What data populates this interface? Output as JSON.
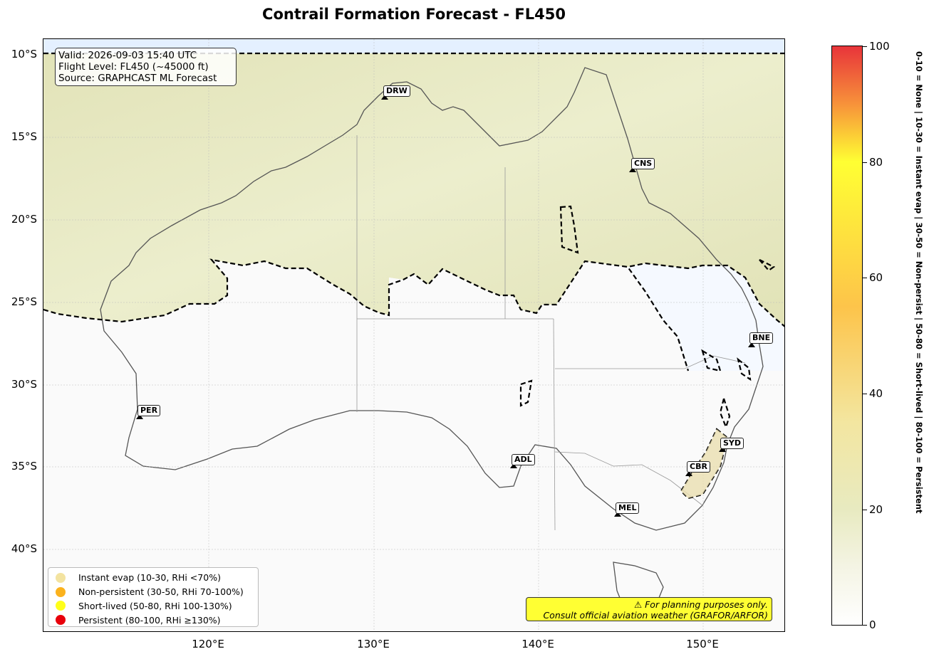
{
  "title": "Contrail Formation Forecast - FL450",
  "info_box": {
    "line1": "Valid: 2026-09-03 15:40 UTC",
    "line2": "Flight Level: FL450 (~45000 ft)",
    "line3": "Source: GRAPHCAST ML Forecast"
  },
  "lat_labels": [
    "10°S",
    "15°S",
    "20°S",
    "25°S",
    "30°S",
    "35°S",
    "40°S"
  ],
  "lon_labels": [
    "120°E",
    "130°E",
    "140°E",
    "150°E"
  ],
  "cities": [
    {
      "code": "DRW"
    },
    {
      "code": "CNS"
    },
    {
      "code": "BNE"
    },
    {
      "code": "PER"
    },
    {
      "code": "SYD"
    },
    {
      "code": "ADL"
    },
    {
      "code": "CBR"
    },
    {
      "code": "MEL"
    }
  ],
  "legend": [
    {
      "label": "Instant evap (10-30, RHi <70%)",
      "color": "#f3e3a0"
    },
    {
      "label": "Non-persistent (30-50, RHi 70-100%)",
      "color": "#fbb21d"
    },
    {
      "label": "Short-lived (50-80, RHi 100-130%)",
      "color": "#ffff1a"
    },
    {
      "label": "Persistent (80-100, RHi ≥130%)",
      "color": "#e8000b"
    }
  ],
  "note": {
    "line1": "⚠ For planning purposes only.",
    "line2": "Consult official aviation weather (GRAFOR/ARFOR)"
  },
  "colorbar": {
    "ticks": [
      "0",
      "20",
      "40",
      "60",
      "80",
      "100"
    ],
    "side_label": "0-10 = None  |  10-30 = Instant evap  |  30-50 = Non-persist  |  50-80 = Short-lived  |  80-100 = Persistent"
  },
  "colors": {
    "low_risk_fill": "#e6e8c2",
    "no_risk_fill": "#fafafa",
    "ocean_fill": "#f4f8ff",
    "contour_line": "#000000"
  }
}
